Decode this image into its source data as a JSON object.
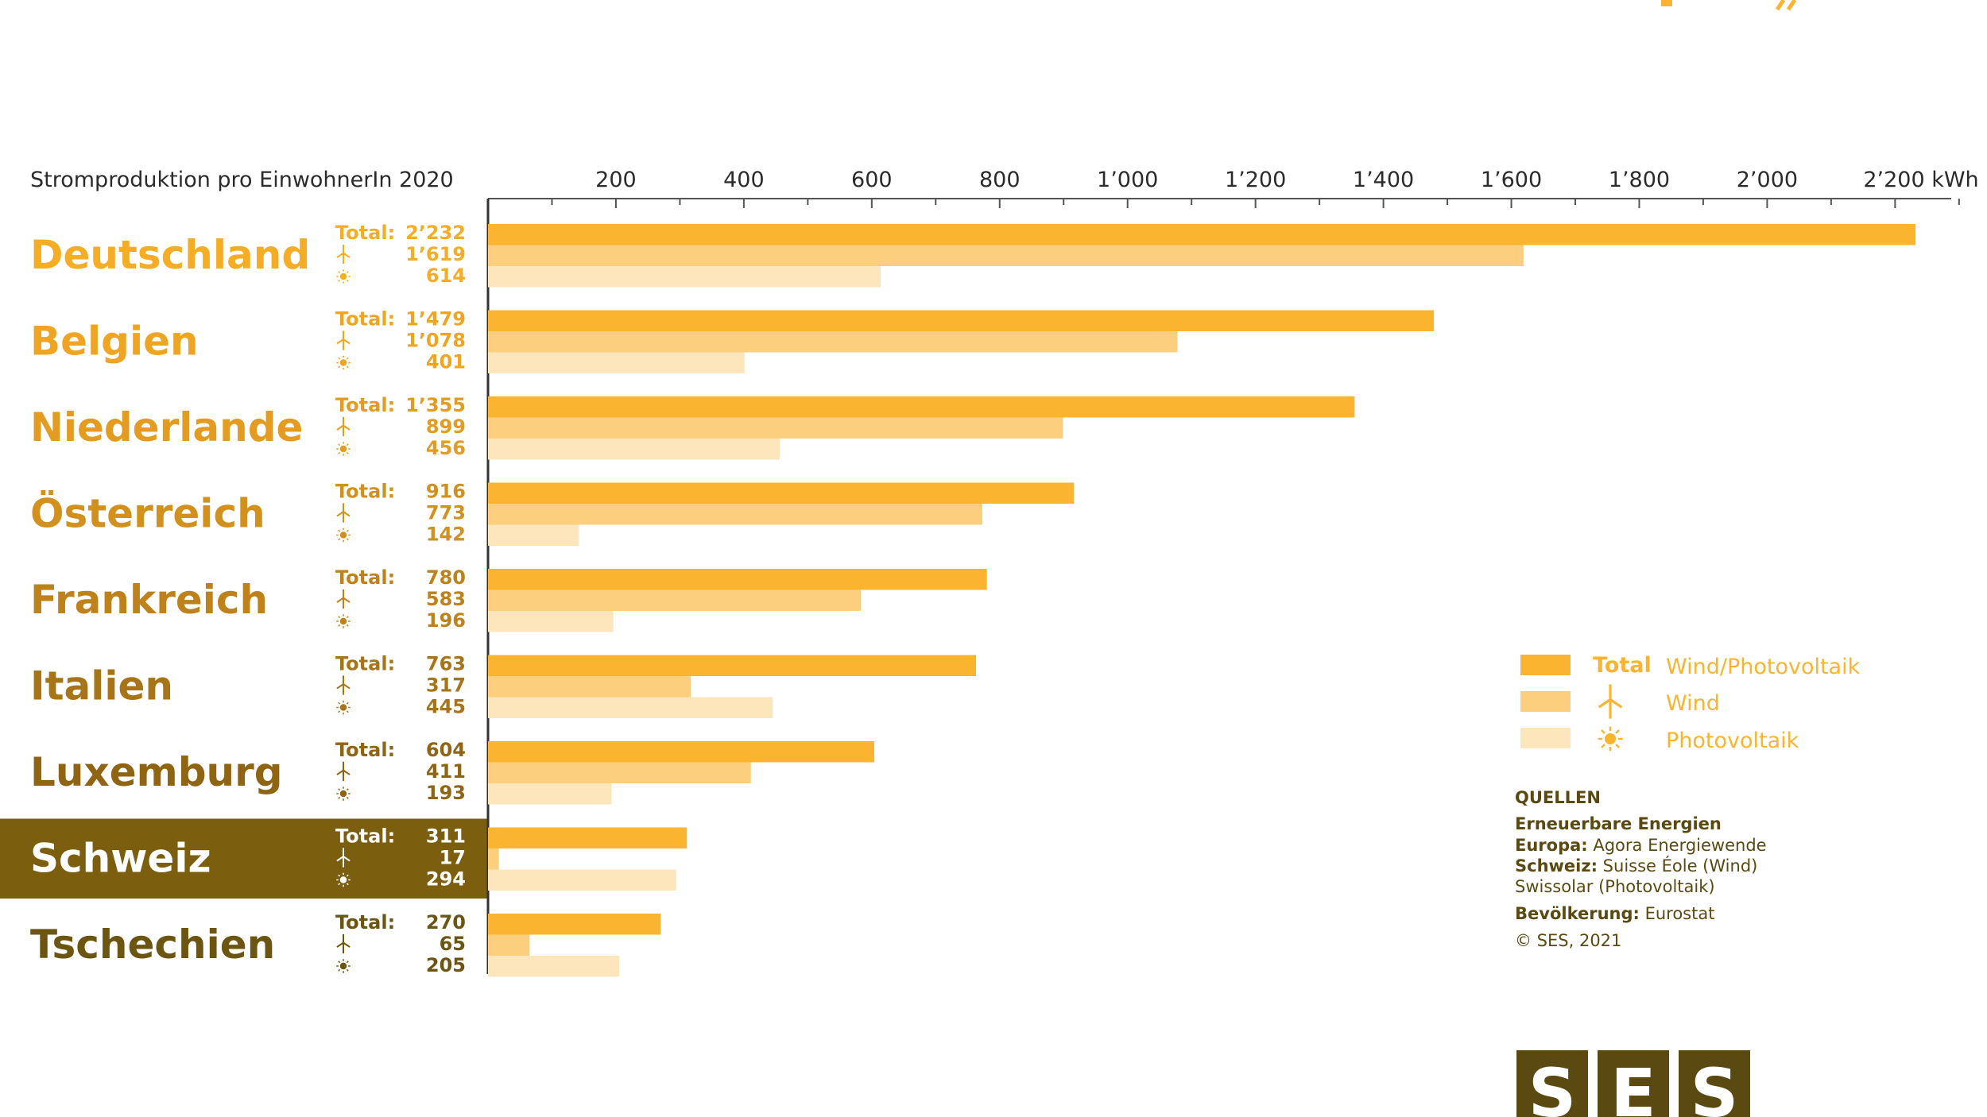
{
  "chart_data": {
    "type": "bar",
    "title": "Stromproduktion pro EinwohnerIn 2020",
    "unit": "kWh",
    "xlim": [
      0,
      2300
    ],
    "x_ticks": [
      200,
      400,
      600,
      800,
      1000,
      1200,
      1400,
      1600,
      1800,
      2000,
      2200
    ],
    "x_tick_labels": [
      "200",
      "400",
      "600",
      "800",
      "1’000",
      "1’200",
      "1’400",
      "1’600",
      "1’800",
      "2’000",
      "2’200 kWh"
    ],
    "total_label": "Total:",
    "highlight": "Schweiz",
    "categories": [
      "Deutschland",
      "Belgien",
      "Niederlande",
      "Österreich",
      "Frankreich",
      "Italien",
      "Luxemburg",
      "Schweiz",
      "Tschechien"
    ],
    "series": [
      {
        "name": "Wind/Photovoltaik",
        "legend_key": "Total",
        "color": "#fbb430",
        "values": [
          2232,
          1479,
          1355,
          916,
          780,
          763,
          604,
          311,
          270
        ],
        "labels": [
          "2’232",
          "1’479",
          "1’355",
          "916",
          "780",
          "763",
          "604",
          "311",
          "270"
        ]
      },
      {
        "name": "Wind",
        "color": "#fccf7f",
        "values": [
          1619,
          1078,
          899,
          773,
          583,
          317,
          411,
          17,
          65
        ],
        "labels": [
          "1’619",
          "1’078",
          "899",
          "773",
          "583",
          "317",
          "411",
          "17",
          "65"
        ]
      },
      {
        "name": "Photovoltaik",
        "color": "#fde5bc",
        "values": [
          614,
          401,
          456,
          142,
          196,
          445,
          193,
          294,
          205
        ],
        "labels": [
          "614",
          "401",
          "456",
          "142",
          "196",
          "445",
          "193",
          "294",
          "205"
        ]
      }
    ],
    "legend_position": "right"
  },
  "colors": {
    "country_gradient": [
      "#f5ad26",
      "#efa522",
      "#e39c20",
      "#d2901d",
      "#bf821a",
      "#a77417",
      "#8f6514",
      "#ffffff",
      "#6c5411"
    ],
    "highlight_bg": "#7b5f0e",
    "axis": "#555555",
    "logo": "#5a4a12"
  },
  "icons": {
    "wind": "wind-turbine-icon",
    "solar": "sun-icon"
  },
  "sources": {
    "heading": "QUELLEN",
    "lines": [
      {
        "bold": "Erneuerbare Energien",
        "text": ""
      },
      {
        "bold": "Europa:",
        "text": " Agora Energiewende"
      },
      {
        "bold": "Schweiz:",
        "text": " Suisse Éole (Wind)"
      },
      {
        "bold": "",
        "text": "Swissolar (Photovoltaik)"
      },
      {
        "bold": "Bevölkerung:",
        "text": " Eurostat"
      },
      {
        "bold": "",
        "text": "© SES, 2021"
      }
    ]
  },
  "logo": {
    "letters": [
      "S",
      "E",
      "S"
    ]
  }
}
